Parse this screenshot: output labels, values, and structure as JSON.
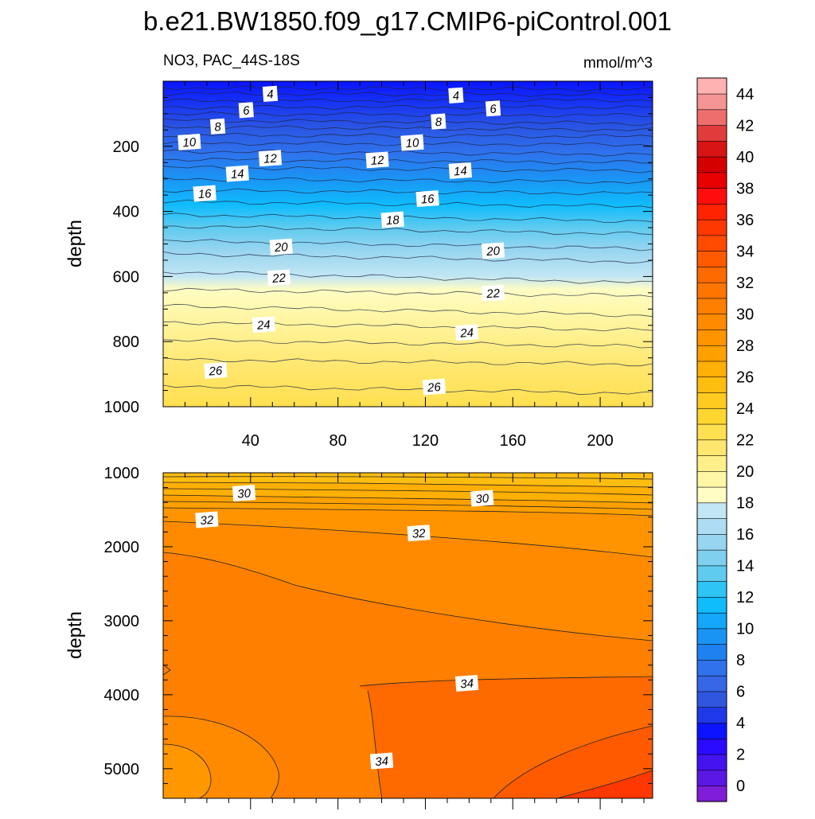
{
  "title": "b.e21.BW1850.f09_g17.CMIP6-piControl.001",
  "colors": {
    "palette": [
      "#7f1dd9",
      "#5b17e4",
      "#4513f0",
      "#2a0bff",
      "#0c14ff",
      "#1f39e8",
      "#3056e0",
      "#3766e6",
      "#2f72ec",
      "#1f80f0",
      "#1a94f4",
      "#14a6f8",
      "#0fbcfc",
      "#2ec4f6",
      "#5ecbef",
      "#7fd0ee",
      "#98d5f0",
      "#aedcf2",
      "#c2e6f3",
      "#fffdc4",
      "#fff6a6",
      "#ffef8a",
      "#ffe66e",
      "#ffe050",
      "#ffd630",
      "#ffcb20",
      "#ffbd10",
      "#ffaf05",
      "#ffa000",
      "#ff9400",
      "#ff8a00",
      "#ff7f00",
      "#ff7500",
      "#ff6a00",
      "#ff5a00",
      "#ff4a00",
      "#ff3700",
      "#ff2200",
      "#ff0d0d",
      "#e90000",
      "#d40000",
      "#d81414",
      "#e23b3b",
      "#ee6e6e",
      "#f59494",
      "#ffb2b2"
    ],
    "labelbar_levels": [
      0,
      2,
      4,
      6,
      8,
      10,
      12,
      14,
      16,
      18,
      20,
      22,
      24,
      26,
      28,
      30,
      32,
      34,
      36,
      38,
      40,
      42,
      44
    ]
  },
  "chart_data": [
    {
      "type": "contour",
      "panel": "upper",
      "left_label": "NO3, PAC_44S-18S",
      "right_label": "mmol/m^3",
      "ylabel": "depth",
      "xlabel": "",
      "ylim": [
        1000,
        0
      ],
      "xlim": [
        0,
        224
      ],
      "x_ticks": [
        40,
        80,
        120,
        160,
        200
      ],
      "y_ticks": [
        200,
        400,
        600,
        800,
        1000
      ],
      "contour_levels": [
        2,
        3,
        4,
        5,
        6,
        7,
        8,
        9,
        10,
        11,
        12,
        13,
        14,
        15,
        16,
        17,
        18,
        19,
        20,
        21,
        22,
        23,
        24,
        25,
        26,
        27
      ],
      "contour_depths": [
        {
          "level": 2,
          "x": [
            0,
            224
          ],
          "depth": [
            20,
            25
          ]
        },
        {
          "level": 3,
          "x": [
            0,
            224
          ],
          "depth": [
            38,
            42
          ]
        },
        {
          "level": 4,
          "x": [
            0,
            224
          ],
          "depth": [
            60,
            58
          ]
        },
        {
          "level": 5,
          "x": [
            0,
            224
          ],
          "depth": [
            80,
            80
          ]
        },
        {
          "level": 6,
          "x": [
            0,
            224
          ],
          "depth": [
            100,
            105
          ]
        },
        {
          "level": 7,
          "x": [
            0,
            224
          ],
          "depth": [
            120,
            130
          ]
        },
        {
          "level": 8,
          "x": [
            0,
            224
          ],
          "depth": [
            140,
            150
          ]
        },
        {
          "level": 9,
          "x": [
            0,
            224
          ],
          "depth": [
            165,
            170
          ]
        },
        {
          "level": 10,
          "x": [
            0,
            224
          ],
          "depth": [
            190,
            195
          ]
        },
        {
          "level": 11,
          "x": [
            0,
            224
          ],
          "depth": [
            215,
            225
          ]
        },
        {
          "level": 12,
          "x": [
            0,
            224
          ],
          "depth": [
            240,
            250
          ]
        },
        {
          "level": 13,
          "x": [
            0,
            224
          ],
          "depth": [
            265,
            275
          ]
        },
        {
          "level": 14,
          "x": [
            0,
            224
          ],
          "depth": [
            300,
            310
          ]
        },
        {
          "level": 15,
          "x": [
            0,
            224
          ],
          "depth": [
            335,
            345
          ]
        },
        {
          "level": 16,
          "x": [
            0,
            224
          ],
          "depth": [
            370,
            385
          ]
        },
        {
          "level": 17,
          "x": [
            0,
            224
          ],
          "depth": [
            410,
            430
          ]
        },
        {
          "level": 18,
          "x": [
            0,
            224
          ],
          "depth": [
            445,
            470
          ]
        },
        {
          "level": 19,
          "x": [
            0,
            224
          ],
          "depth": [
            490,
            515
          ]
        },
        {
          "level": 20,
          "x": [
            0,
            224
          ],
          "depth": [
            530,
            555
          ]
        },
        {
          "level": 21,
          "x": [
            0,
            224
          ],
          "depth": [
            585,
            620
          ]
        },
        {
          "level": 22,
          "x": [
            0,
            224
          ],
          "depth": [
            640,
            660
          ]
        },
        {
          "level": 23,
          "x": [
            0,
            224
          ],
          "depth": [
            690,
            720
          ]
        },
        {
          "level": 24,
          "x": [
            0,
            224
          ],
          "depth": [
            740,
            765
          ]
        },
        {
          "level": 25,
          "x": [
            0,
            224
          ],
          "depth": [
            795,
            815
          ]
        },
        {
          "level": 26,
          "x": [
            0,
            224
          ],
          "depth": [
            855,
            870
          ]
        },
        {
          "level": 27,
          "x": [
            0,
            224
          ],
          "depth": [
            935,
            960
          ]
        }
      ],
      "line_labels": [
        {
          "text": "4",
          "x": 49,
          "depth": 40
        },
        {
          "text": "4",
          "x": 134,
          "depth": 45
        },
        {
          "text": "6",
          "x": 38,
          "depth": 90
        },
        {
          "text": "6",
          "x": 151,
          "depth": 85
        },
        {
          "text": "8",
          "x": 25,
          "depth": 140
        },
        {
          "text": "8",
          "x": 126,
          "depth": 125
        },
        {
          "text": "10",
          "x": 12,
          "depth": 188
        },
        {
          "text": "10",
          "x": 114,
          "depth": 190
        },
        {
          "text": "12",
          "x": 49,
          "depth": 238
        },
        {
          "text": "12",
          "x": 98,
          "depth": 243
        },
        {
          "text": "14",
          "x": 34,
          "depth": 285
        },
        {
          "text": "14",
          "x": 136,
          "depth": 276
        },
        {
          "text": "16",
          "x": 19,
          "depth": 346
        },
        {
          "text": "16",
          "x": 121,
          "depth": 362
        },
        {
          "text": "18",
          "x": 105,
          "depth": 427
        },
        {
          "text": "20",
          "x": 54,
          "depth": 510
        },
        {
          "text": "20",
          "x": 151,
          "depth": 522
        },
        {
          "text": "22",
          "x": 53,
          "depth": 605
        },
        {
          "text": "22",
          "x": 151,
          "depth": 652
        },
        {
          "text": "24",
          "x": 46,
          "depth": 749
        },
        {
          "text": "24",
          "x": 139,
          "depth": 773
        },
        {
          "text": "26",
          "x": 24,
          "depth": 890
        },
        {
          "text": "26",
          "x": 124,
          "depth": 940
        }
      ]
    },
    {
      "type": "contour",
      "panel": "lower",
      "ylabel": "depth",
      "xlabel": "",
      "ylim": [
        5400,
        1000
      ],
      "xlim": [
        0,
        224
      ],
      "x_ticks": [],
      "y_ticks": [
        1000,
        2000,
        3000,
        4000,
        5000
      ],
      "contour_levels": [
        29,
        30,
        31,
        32,
        33,
        34,
        35
      ],
      "regions": [
        {
          "level_range": [
            29,
            30
          ],
          "description_depth": [
            1000,
            1350
          ]
        },
        {
          "level_range": [
            31,
            32
          ],
          "description_depth": [
            1350,
            1800
          ]
        },
        {
          "level_range": [
            32,
            33
          ],
          "description_depth": [
            1800,
            5400
          ]
        },
        {
          "level_range": [
            33,
            34
          ],
          "x_min": 90,
          "depth_min": 3800
        },
        {
          "level_range": [
            34,
            35
          ],
          "x_min": 150,
          "depth_min": 4400
        },
        {
          "level_range": [
            31,
            32
          ],
          "x_max": 55,
          "depth_min": 4300
        }
      ],
      "line_labels": [
        {
          "text": "30",
          "x": 37,
          "depth": 1280
        },
        {
          "text": "30",
          "x": 146,
          "depth": 1350
        },
        {
          "text": "32",
          "x": 20,
          "depth": 1640
        },
        {
          "text": "32",
          "x": 117,
          "depth": 1820
        },
        {
          "text": "34",
          "x": 139,
          "depth": 3850
        },
        {
          "text": "34",
          "x": 100,
          "depth": 4900
        }
      ]
    }
  ]
}
